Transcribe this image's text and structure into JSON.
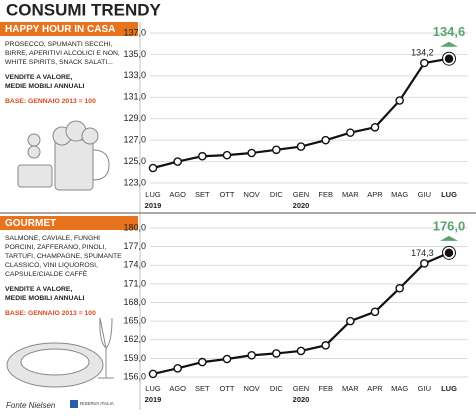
{
  "title": "CONSUMI TRENDY",
  "source": "Fonte Nielsen",
  "logo": "RISERVA ITALIA",
  "chart_data": [
    {
      "type": "line",
      "title": "HAPPY HOUR IN CASA",
      "description": [
        "PROSECCO, SPUMANTI SECCHI,",
        "BIRRE, APERITIVI ALCOLICI E NON,",
        "WHITE SPIRITS, SNACK SALATI..."
      ],
      "subtitle": [
        "VENDITE A VALORE,",
        "MEDIE MOBILI ANNUALI"
      ],
      "base": "BASE: GENNAIO 2013 = 100",
      "categories": [
        "LUG",
        "AGO",
        "SET",
        "OTT",
        "NOV",
        "DIC",
        "GEN",
        "FEB",
        "MAR",
        "APR",
        "MAG",
        "GIU",
        "LUG"
      ],
      "years": [
        "2019",
        null,
        null,
        null,
        null,
        null,
        "2020",
        null,
        null,
        null,
        null,
        null,
        null
      ],
      "values": [
        124.4,
        125.0,
        125.5,
        125.6,
        125.8,
        126.1,
        126.4,
        127.0,
        127.7,
        128.2,
        130.7,
        134.2,
        134.6
      ],
      "value_labels": [
        null,
        null,
        null,
        null,
        null,
        null,
        null,
        null,
        null,
        null,
        null,
        "134,2",
        "134,6"
      ],
      "color": "#111111",
      "highlight_color": "#5aa46f",
      "header_color": "#e8731f",
      "base_color": "#d9481c",
      "ylim": [
        123,
        137
      ],
      "yticks": [
        {
          "value": 123,
          "label": "123,0"
        },
        {
          "value": 125,
          "label": "125,0"
        },
        {
          "value": 127,
          "label": "127,0"
        },
        {
          "value": 129,
          "label": "129,0"
        },
        {
          "value": 131,
          "label": "131,0"
        },
        {
          "value": 133,
          "label": "133,0"
        },
        {
          "value": 135,
          "label": "135,0"
        },
        {
          "value": 137,
          "label": "137,0"
        }
      ],
      "grid": true
    },
    {
      "type": "line",
      "title": "GOURMET",
      "description": [
        "SALMONE, CAVIALE, FUNGHI",
        "PORCINI, ZAFFERANO, PINOLI,",
        "TARTUFI, CHAMPAGNE, SPUMANTE",
        "CLASSICO, VINI LIQUOROSI,",
        "CAPSULE/CIALDE CAFFÈ"
      ],
      "subtitle": [
        "VENDITE A VALORE,",
        "MEDIE MOBILI ANNUALI"
      ],
      "base": "BASE: GENNAIO 2013 = 100",
      "categories": [
        "LUG",
        "AGO",
        "SET",
        "OTT",
        "NOV",
        "DIC",
        "GEN",
        "FEB",
        "MAR",
        "APR",
        "MAG",
        "GIU",
        "LUG"
      ],
      "years": [
        "2019",
        null,
        null,
        null,
        null,
        null,
        "2020",
        null,
        null,
        null,
        null,
        null,
        null
      ],
      "values": [
        156.5,
        157.4,
        158.4,
        158.9,
        159.5,
        159.8,
        160.2,
        161.1,
        165.0,
        166.5,
        170.3,
        174.3,
        176.0
      ],
      "value_labels": [
        null,
        null,
        null,
        null,
        null,
        null,
        null,
        null,
        null,
        null,
        null,
        "174,3",
        "176,0"
      ],
      "color": "#111111",
      "highlight_color": "#5aa46f",
      "header_color": "#e8731f",
      "base_color": "#d9481c",
      "ylim": [
        156,
        180
      ],
      "yticks": [
        {
          "value": 156,
          "label": "156,0"
        },
        {
          "value": 159,
          "label": "159,0"
        },
        {
          "value": 162,
          "label": "162,0"
        },
        {
          "value": 165,
          "label": "165,0"
        },
        {
          "value": 168,
          "label": "168,0"
        },
        {
          "value": 171,
          "label": "171,0"
        },
        {
          "value": 174,
          "label": "174,0"
        },
        {
          "value": 177,
          "label": "177,0"
        },
        {
          "value": 180,
          "label": "180,0"
        }
      ],
      "grid": true
    }
  ]
}
